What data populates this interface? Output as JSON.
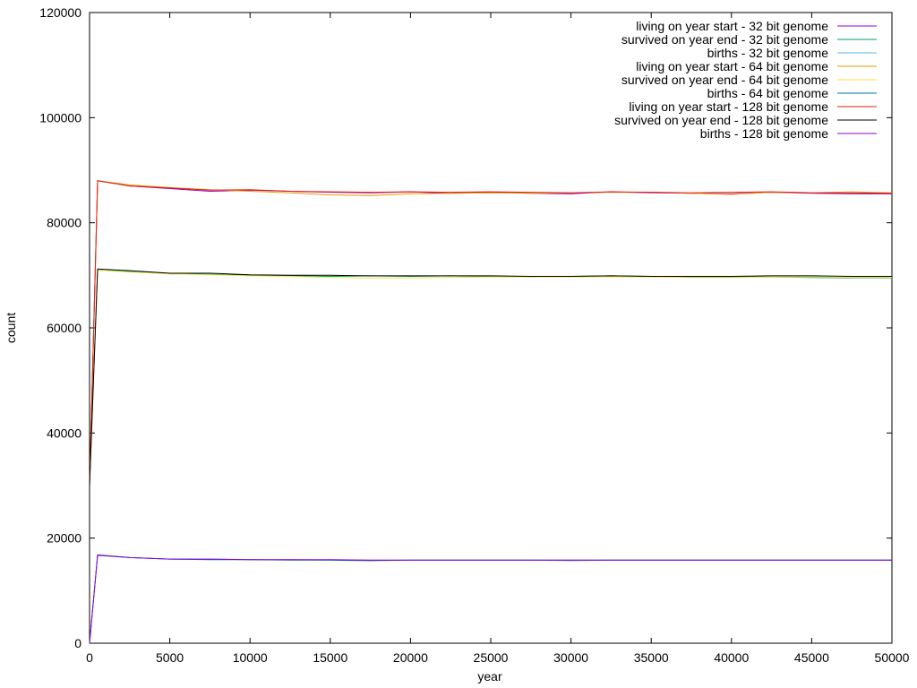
{
  "chart_data": {
    "type": "line",
    "title": "",
    "xlabel": "year",
    "ylabel": "count",
    "xlim": [
      0,
      50000
    ],
    "ylim": [
      0,
      120000
    ],
    "xticks": [
      0,
      5000,
      10000,
      15000,
      20000,
      25000,
      30000,
      35000,
      40000,
      45000,
      50000
    ],
    "yticks": [
      0,
      20000,
      40000,
      60000,
      80000,
      100000,
      120000
    ],
    "grid": false,
    "legend_position": "top-right",
    "series": [
      {
        "name": "living on year start - 32 bit genome",
        "color": "#9400d3",
        "x": [
          0,
          500,
          2500,
          5000,
          7500,
          10000,
          12500,
          15000,
          17500,
          20000,
          22500,
          25000,
          27500,
          30000,
          32500,
          35000,
          37500,
          40000,
          42500,
          45000,
          47500,
          50000
        ],
        "y": [
          30000,
          88000,
          87000,
          86500,
          86000,
          86200,
          86000,
          85800,
          85700,
          85900,
          85600,
          85800,
          85600,
          85500,
          85900,
          85700,
          85600,
          85500,
          85800,
          85600,
          85500,
          85500
        ]
      },
      {
        "name": "survived on year end - 32 bit genome",
        "color": "#009e73",
        "x": [
          0,
          500,
          2500,
          5000,
          7500,
          10000,
          12500,
          15000,
          17500,
          20000,
          22500,
          25000,
          27500,
          30000,
          32500,
          35000,
          37500,
          40000,
          42500,
          45000,
          47500,
          50000
        ],
        "y": [
          30000,
          71000,
          70700,
          70300,
          70200,
          70000,
          69900,
          69800,
          69900,
          69800,
          69900,
          69800,
          69700,
          69800,
          69900,
          69800,
          69700,
          69700,
          69700,
          69600,
          69500,
          69500
        ]
      },
      {
        "name": "births - 32 bit genome",
        "color": "#56b4e9",
        "x": [
          0,
          500,
          2500,
          5000,
          7500,
          10000,
          12500,
          15000,
          17500,
          20000,
          22500,
          25000,
          27500,
          30000,
          32500,
          35000,
          37500,
          40000,
          42500,
          45000,
          47500,
          50000
        ],
        "y": [
          0,
          16800,
          16300,
          16000,
          16000,
          15900,
          15900,
          15800,
          15800,
          15800,
          15800,
          15800,
          15800,
          15700,
          15800,
          15800,
          15800,
          15800,
          15800,
          15800,
          15800,
          15800
        ]
      },
      {
        "name": "living on year start - 64 bit genome",
        "color": "#e69f00",
        "x": [
          0,
          500,
          2500,
          5000,
          7500,
          10000,
          12500,
          15000,
          17500,
          20000,
          22500,
          25000,
          27500,
          30000,
          32500,
          35000,
          37500,
          40000,
          42500,
          45000,
          47500,
          50000
        ],
        "y": [
          30000,
          88000,
          87200,
          86700,
          86300,
          86000,
          85700,
          85300,
          85200,
          85500,
          85600,
          85700,
          85600,
          85700,
          85800,
          85800,
          85600,
          85400,
          85800,
          85700,
          85900,
          85700
        ]
      },
      {
        "name": "survived on year end - 64 bit genome",
        "color": "#f0e442",
        "x": [
          0,
          500,
          2500,
          5000,
          7500,
          10000,
          12500,
          15000,
          17500,
          20000,
          22500,
          25000,
          27500,
          30000,
          32500,
          35000,
          37500,
          40000,
          42500,
          45000,
          47500,
          50000
        ],
        "y": [
          30000,
          71000,
          70600,
          70300,
          70100,
          69900,
          69800,
          69600,
          69500,
          69500,
          69600,
          69700,
          69700,
          69700,
          69700,
          69700,
          69600,
          69600,
          69700,
          69700,
          69600,
          69600
        ]
      },
      {
        "name": "births - 64 bit genome",
        "color": "#0072b2",
        "x": [
          0,
          500,
          2500,
          5000,
          7500,
          10000,
          12500,
          15000,
          17500,
          20000,
          22500,
          25000,
          27500,
          30000,
          32500,
          35000,
          37500,
          40000,
          42500,
          45000,
          47500,
          50000
        ],
        "y": [
          0,
          16700,
          16300,
          16000,
          15900,
          15900,
          15800,
          15800,
          15700,
          15800,
          15800,
          15800,
          15800,
          15800,
          15800,
          15800,
          15800,
          15800,
          15800,
          15800,
          15800,
          15800
        ]
      },
      {
        "name": "living on year start - 128 bit genome",
        "color": "#e51e10",
        "x": [
          0,
          500,
          2500,
          5000,
          7500,
          10000,
          12500,
          15000,
          17500,
          20000,
          22500,
          25000,
          27500,
          30000,
          32500,
          35000,
          37500,
          40000,
          42500,
          45000,
          47500,
          50000
        ],
        "y": [
          30000,
          88000,
          87000,
          86600,
          86200,
          86300,
          86000,
          85900,
          85800,
          85900,
          85800,
          85900,
          85800,
          85700,
          85900,
          85800,
          85700,
          85800,
          85900,
          85700,
          85700,
          85600
        ]
      },
      {
        "name": "survived on year end - 128 bit genome",
        "color": "#000000",
        "x": [
          0,
          500,
          2500,
          5000,
          7500,
          10000,
          12500,
          15000,
          17500,
          20000,
          22500,
          25000,
          27500,
          30000,
          32500,
          35000,
          37500,
          40000,
          42500,
          45000,
          47500,
          50000
        ],
        "y": [
          30000,
          71200,
          70900,
          70400,
          70400,
          70100,
          70000,
          70000,
          69900,
          69900,
          69900,
          69900,
          69800,
          69800,
          69900,
          69800,
          69800,
          69800,
          69900,
          69900,
          69800,
          69800
        ]
      },
      {
        "name": "births - 128 bit genome",
        "color": "#9400d3",
        "x": [
          0,
          500,
          2500,
          5000,
          7500,
          10000,
          12500,
          15000,
          17500,
          20000,
          22500,
          25000,
          27500,
          30000,
          32500,
          35000,
          37500,
          40000,
          42500,
          45000,
          47500,
          50000
        ],
        "y": [
          0,
          16800,
          16300,
          16000,
          16000,
          15900,
          15900,
          15900,
          15800,
          15800,
          15800,
          15800,
          15800,
          15800,
          15800,
          15800,
          15800,
          15800,
          15800,
          15800,
          15800,
          15800
        ]
      }
    ]
  }
}
